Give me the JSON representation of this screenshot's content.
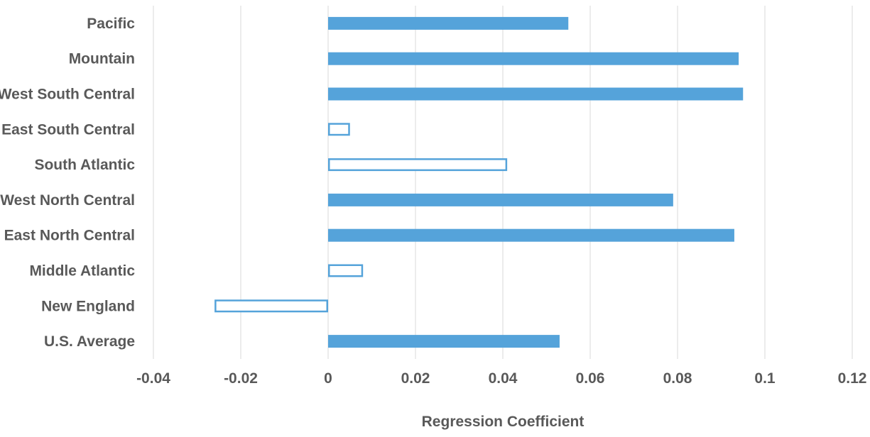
{
  "chart_data": {
    "type": "bar",
    "orientation": "horizontal",
    "categories": [
      "Pacific",
      "Mountain",
      "West South Central",
      "East South Central",
      "South Atlantic",
      "West North Central",
      "East North Central",
      "Middle Atlantic",
      "New England",
      "U.S. Average"
    ],
    "values": [
      0.055,
      0.094,
      0.095,
      0.005,
      0.041,
      0.079,
      0.093,
      0.008,
      -0.026,
      0.053
    ],
    "significant": [
      true,
      true,
      true,
      false,
      false,
      true,
      true,
      false,
      false,
      true
    ],
    "xlabel": "Regression Coefficient",
    "ylabel": "",
    "xlim": [
      -0.04,
      0.12
    ],
    "xticks": [
      "-0.04",
      "-0.02",
      "0",
      "0.02",
      "0.04",
      "0.06",
      "0.08",
      "0.1",
      "0.12"
    ],
    "grid": "vertical",
    "colors": {
      "bar": "#55a3da",
      "text": "#595959",
      "grid": "#d9d9d9"
    }
  }
}
